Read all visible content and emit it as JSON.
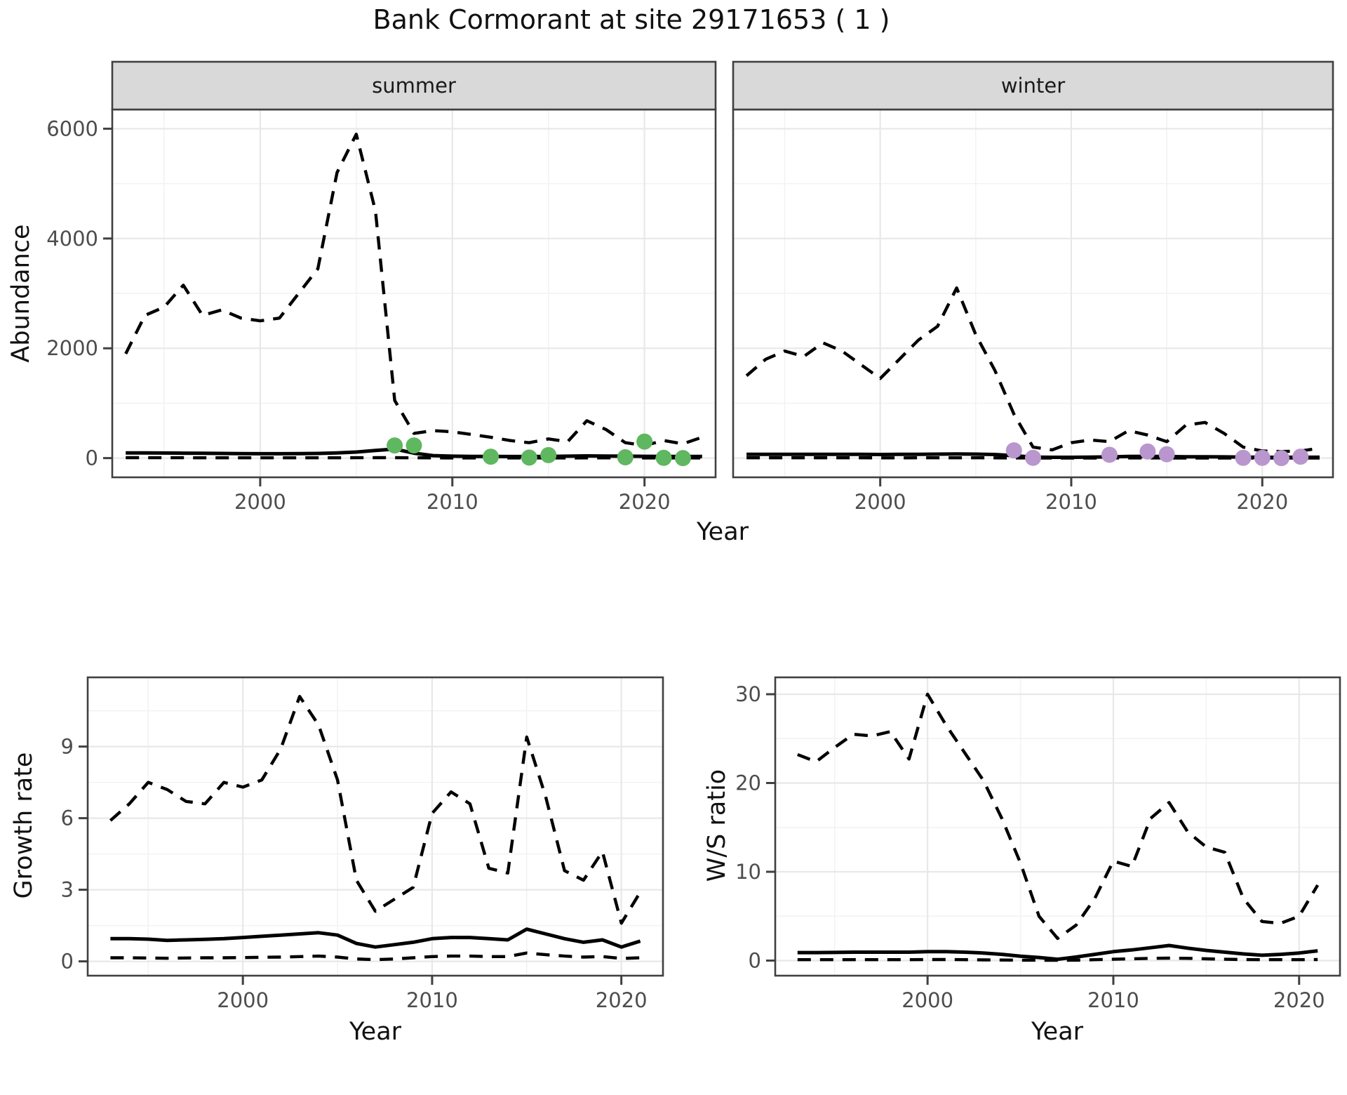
{
  "title": "Bank Cormorant at site 29171653 ( 1 )",
  "axis_labels": {
    "abundance": "Abundance",
    "year_top": "Year",
    "growth_rate": "Growth rate",
    "year_bottom_left": "Year",
    "ws_ratio": "W/S ratio",
    "year_bottom_right": "Year"
  },
  "facets": [
    "summer",
    "winter"
  ],
  "colors": {
    "summer_points": "#5FB75F",
    "winter_points": "#B996CD",
    "line": "#000000",
    "strip_bg": "#D9D9D9",
    "strip_text": "#1A1A1A",
    "panel_border": "#404040",
    "grid_major": "#E8E8E8",
    "grid_minor": "#F2F2F2",
    "tick_text": "#4D4D4D"
  },
  "chart_data": [
    {
      "type": "line",
      "facet": "summer",
      "ylabel": "Abundance",
      "xlabel": "Year",
      "xlim": [
        1992.3,
        2023.7
      ],
      "ylim": [
        -350,
        6350
      ],
      "x_ticks": [
        2000,
        2010,
        2020
      ],
      "y_ticks": [
        0,
        2000,
        4000,
        6000
      ],
      "x_minor": [
        1995,
        2005,
        2015
      ],
      "y_minor": [
        1000,
        3000,
        5000
      ],
      "grid": true,
      "legend": "none",
      "x": [
        1993,
        1994,
        1995,
        1996,
        1997,
        1998,
        1999,
        2000,
        2001,
        2002,
        2003,
        2004,
        2005,
        2006,
        2007,
        2008,
        2009,
        2010,
        2011,
        2012,
        2013,
        2014,
        2015,
        2016,
        2017,
        2018,
        2019,
        2020,
        2021,
        2022,
        2023
      ],
      "series": [
        {
          "name": "upper_95ci",
          "style": "dashed",
          "values": [
            1900,
            2600,
            2750,
            3150,
            2600,
            2700,
            2550,
            2500,
            2550,
            3000,
            3450,
            5200,
            5900,
            4500,
            1050,
            450,
            500,
            480,
            430,
            380,
            320,
            280,
            350,
            300,
            680,
            520,
            280,
            230,
            320,
            260,
            380
          ]
        },
        {
          "name": "median",
          "style": "solid",
          "values": [
            95,
            95,
            92,
            90,
            88,
            85,
            82,
            80,
            80,
            82,
            85,
            95,
            110,
            140,
            165,
            90,
            45,
            35,
            30,
            30,
            28,
            28,
            30,
            35,
            40,
            38,
            35,
            32,
            30,
            28,
            30
          ]
        },
        {
          "name": "lower_95ci",
          "style": "dashed",
          "values": [
            8,
            8,
            7,
            7,
            6,
            6,
            5,
            5,
            5,
            5,
            6,
            6,
            7,
            8,
            8,
            6,
            4,
            3,
            3,
            3,
            3,
            3,
            3,
            3,
            4,
            4,
            3,
            3,
            3,
            3,
            3
          ]
        }
      ],
      "points": {
        "name": "observed_counts_summer",
        "color_key": "summer_points",
        "x": [
          2007,
          2008,
          2012,
          2014,
          2015,
          2019,
          2020,
          2021,
          2022
        ],
        "y": [
          230,
          230,
          25,
          10,
          55,
          15,
          300,
          5,
          0
        ]
      }
    },
    {
      "type": "line",
      "facet": "winter",
      "ylabel": "Abundance",
      "xlabel": "Year",
      "xlim": [
        1992.3,
        2023.7
      ],
      "ylim": [
        -350,
        6350
      ],
      "x_ticks": [
        2000,
        2010,
        2020
      ],
      "y_ticks": [
        0,
        2000,
        4000,
        6000
      ],
      "x_minor": [
        1995,
        2005,
        2015
      ],
      "y_minor": [
        1000,
        3000,
        5000
      ],
      "grid": true,
      "legend": "none",
      "x": [
        1993,
        1994,
        1995,
        1996,
        1997,
        1998,
        1999,
        2000,
        2001,
        2002,
        2003,
        2004,
        2005,
        2006,
        2007,
        2008,
        2009,
        2010,
        2011,
        2012,
        2013,
        2014,
        2015,
        2016,
        2017,
        2018,
        2019,
        2020,
        2021,
        2022,
        2023
      ],
      "series": [
        {
          "name": "upper_95ci",
          "style": "dashed",
          "values": [
            1500,
            1800,
            1950,
            1850,
            2100,
            1950,
            1700,
            1450,
            1800,
            2150,
            2400,
            3100,
            2250,
            1600,
            800,
            200,
            150,
            280,
            330,
            300,
            500,
            420,
            300,
            600,
            650,
            450,
            200,
            130,
            120,
            130,
            180
          ]
        },
        {
          "name": "median",
          "style": "solid",
          "values": [
            68,
            68,
            68,
            68,
            70,
            70,
            68,
            65,
            68,
            70,
            72,
            75,
            72,
            65,
            45,
            18,
            15,
            15,
            18,
            22,
            30,
            32,
            28,
            25,
            25,
            22,
            18,
            15,
            14,
            15,
            16
          ]
        },
        {
          "name": "lower_95ci",
          "style": "dashed",
          "values": [
            5,
            5,
            5,
            5,
            5,
            5,
            5,
            4,
            4,
            5,
            5,
            5,
            5,
            4,
            3,
            2,
            2,
            2,
            2,
            2,
            3,
            3,
            2,
            2,
            2,
            2,
            2,
            2,
            2,
            2,
            2
          ]
        }
      ],
      "points": {
        "name": "observed_counts_winter",
        "color_key": "winter_points",
        "x": [
          2007,
          2008,
          2012,
          2014,
          2015,
          2019,
          2020,
          2021,
          2022
        ],
        "y": [
          140,
          5,
          60,
          120,
          70,
          5,
          5,
          0,
          25
        ]
      }
    },
    {
      "type": "line",
      "facet": null,
      "ylabel": "Growth rate",
      "xlabel": "Year",
      "xlim": [
        1991.8,
        2022.2
      ],
      "ylim": [
        -0.6,
        11.9
      ],
      "x_ticks": [
        2000,
        2010,
        2020
      ],
      "y_ticks": [
        0,
        3,
        6,
        9
      ],
      "x_minor": [
        1995,
        2005,
        2015
      ],
      "y_minor": [
        1.5,
        4.5,
        7.5,
        10.5
      ],
      "grid": true,
      "legend": "none",
      "x": [
        1993,
        1994,
        1995,
        1996,
        1997,
        1998,
        1999,
        2000,
        2001,
        2002,
        2003,
        2004,
        2005,
        2006,
        2007,
        2008,
        2009,
        2010,
        2011,
        2012,
        2013,
        2014,
        2015,
        2016,
        2017,
        2018,
        2019,
        2020,
        2021
      ],
      "series": [
        {
          "name": "upper_95ci",
          "style": "dashed",
          "values": [
            5.9,
            6.6,
            7.5,
            7.2,
            6.7,
            6.6,
            7.5,
            7.3,
            7.6,
            8.9,
            11.1,
            9.9,
            7.6,
            3.4,
            2.1,
            2.6,
            3.1,
            6.2,
            7.1,
            6.6,
            3.9,
            3.7,
            9.4,
            6.9,
            3.8,
            3.4,
            4.6,
            1.6,
            2.9
          ]
        },
        {
          "name": "median",
          "style": "solid",
          "values": [
            0.95,
            0.95,
            0.93,
            0.88,
            0.9,
            0.92,
            0.95,
            1.0,
            1.05,
            1.1,
            1.15,
            1.2,
            1.1,
            0.75,
            0.6,
            0.7,
            0.8,
            0.95,
            1.0,
            1.0,
            0.95,
            0.9,
            1.35,
            1.15,
            0.95,
            0.8,
            0.9,
            0.6,
            0.85
          ]
        },
        {
          "name": "lower_95ci",
          "style": "dashed",
          "values": [
            0.15,
            0.15,
            0.14,
            0.13,
            0.14,
            0.15,
            0.15,
            0.16,
            0.17,
            0.18,
            0.2,
            0.22,
            0.18,
            0.1,
            0.07,
            0.1,
            0.15,
            0.2,
            0.22,
            0.22,
            0.2,
            0.2,
            0.35,
            0.28,
            0.22,
            0.18,
            0.2,
            0.12,
            0.15
          ]
        }
      ],
      "points": null
    },
    {
      "type": "line",
      "facet": null,
      "ylabel": "W/S ratio",
      "xlabel": "Year",
      "xlim": [
        1991.8,
        2022.2
      ],
      "ylim": [
        -1.7,
        31.9
      ],
      "x_ticks": [
        2000,
        2010,
        2020
      ],
      "y_ticks": [
        0,
        10,
        20,
        30
      ],
      "x_minor": [
        1995,
        2005,
        2015
      ],
      "y_minor": [
        5,
        15,
        25
      ],
      "grid": true,
      "legend": "none",
      "x": [
        1993,
        1994,
        1995,
        1996,
        1997,
        1998,
        1999,
        2000,
        2001,
        2002,
        2003,
        2004,
        2005,
        2006,
        2007,
        2008,
        2009,
        2010,
        2011,
        2012,
        2013,
        2014,
        2015,
        2016,
        2017,
        2018,
        2019,
        2020,
        2021
      ],
      "series": [
        {
          "name": "upper_95ci",
          "style": "dashed",
          "values": [
            23.2,
            22.4,
            24.0,
            25.5,
            25.3,
            25.8,
            22.7,
            30.0,
            26.5,
            23.4,
            20.3,
            16.0,
            11.0,
            5.0,
            2.5,
            4.0,
            7.0,
            11.2,
            10.6,
            16.0,
            17.8,
            14.5,
            12.8,
            12.2,
            7.0,
            4.4,
            4.2,
            5.0,
            8.5
          ]
        },
        {
          "name": "median",
          "style": "solid",
          "values": [
            0.9,
            0.9,
            0.92,
            0.95,
            0.95,
            0.95,
            0.95,
            1.0,
            1.0,
            0.95,
            0.85,
            0.7,
            0.5,
            0.35,
            0.15,
            0.4,
            0.7,
            1.0,
            1.2,
            1.45,
            1.7,
            1.4,
            1.15,
            0.95,
            0.75,
            0.6,
            0.7,
            0.85,
            1.1
          ]
        },
        {
          "name": "lower_95ci",
          "style": "dashed",
          "values": [
            0.1,
            0.1,
            0.1,
            0.1,
            0.1,
            0.1,
            0.1,
            0.12,
            0.12,
            0.1,
            0.08,
            0.06,
            0.05,
            0.04,
            0.03,
            0.05,
            0.1,
            0.15,
            0.2,
            0.25,
            0.28,
            0.25,
            0.2,
            0.15,
            0.12,
            0.1,
            0.1,
            0.1,
            0.12
          ]
        }
      ],
      "points": null
    }
  ]
}
